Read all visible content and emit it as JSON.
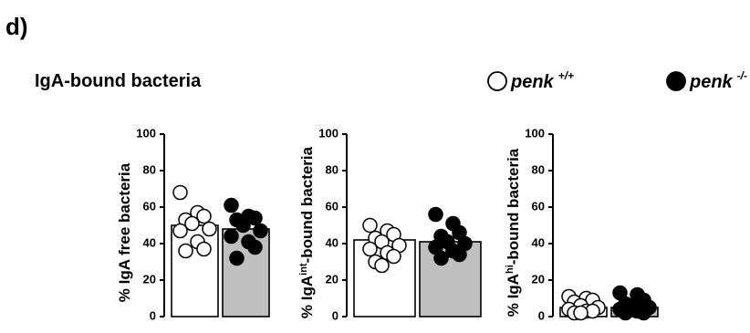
{
  "panel_label": "d)",
  "title": "IgA-bound bacteria",
  "legend": [
    {
      "name": "penk",
      "sup": "+/+",
      "fill": "#ffffff"
    },
    {
      "name": "penk",
      "sup": "-/-",
      "fill": "#000000"
    }
  ],
  "chart_data": [
    {
      "type": "bar",
      "ylabel": [
        {
          "text": "% IgA free bacteria",
          "sup": false
        }
      ],
      "ylim": [
        0,
        100
      ],
      "yticks": [
        0,
        20,
        40,
        60,
        80,
        100
      ],
      "series": [
        {
          "fill": "#ffffff",
          "bar_fill": "#ffffff",
          "bar": 50,
          "points": [
            68,
            57,
            55,
            53,
            51,
            48,
            47,
            41,
            37,
            36
          ]
        },
        {
          "fill": "#000000",
          "bar_fill": "#c0c0c0",
          "bar": 48,
          "points": [
            61,
            55,
            54,
            53,
            50,
            47,
            44,
            41,
            38,
            32
          ]
        }
      ]
    },
    {
      "type": "bar",
      "ylabel": [
        {
          "text": "% IgA",
          "sup": false
        },
        {
          "text": "int",
          "sup": true
        },
        {
          "text": "-bound bacteria",
          "sup": false
        }
      ],
      "ylim": [
        0,
        100
      ],
      "yticks": [
        0,
        20,
        40,
        60,
        80,
        100
      ],
      "series": [
        {
          "fill": "#ffffff",
          "bar_fill": "#ffffff",
          "bar": 42,
          "points": [
            50,
            47,
            45,
            43,
            41,
            39,
            37,
            35,
            33,
            30,
            28
          ]
        },
        {
          "fill": "#000000",
          "bar_fill": "#c0c0c0",
          "bar": 41,
          "points": [
            56,
            51,
            46,
            44,
            41,
            40,
            38,
            36,
            34,
            32
          ]
        }
      ]
    },
    {
      "type": "bar",
      "ylabel": [
        {
          "text": "% IgA",
          "sup": false
        },
        {
          "text": "hi",
          "sup": true
        },
        {
          "text": "-bound bacteria",
          "sup": false
        }
      ],
      "ylim": [
        0,
        100
      ],
      "yticks": [
        0,
        20,
        40,
        60,
        80,
        100
      ],
      "series": [
        {
          "fill": "#ffffff",
          "bar_fill": "#ffffff",
          "bar": 5,
          "points": [
            11,
            10,
            9,
            8,
            6,
            5,
            4,
            3,
            3,
            2,
            2
          ]
        },
        {
          "fill": "#000000",
          "bar_fill": "#c0c0c0",
          "bar": 5,
          "points": [
            13,
            12,
            9,
            7,
            6,
            5,
            4,
            3,
            2,
            2
          ]
        }
      ]
    }
  ]
}
